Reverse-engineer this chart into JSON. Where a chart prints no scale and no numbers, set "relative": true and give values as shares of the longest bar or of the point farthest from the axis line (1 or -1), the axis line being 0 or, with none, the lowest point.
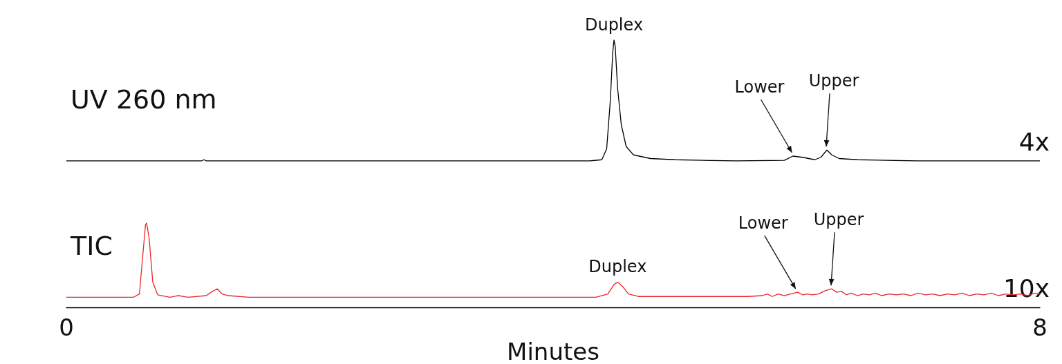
{
  "chart_data": [
    {
      "type": "line",
      "relative": true,
      "xlim": [
        0,
        8
      ],
      "tick_labels": false,
      "legend": false,
      "grid": false,
      "marker": "none",
      "series": [
        {
          "name": "UV 260 nm",
          "color": "#000000",
          "x": [
            0,
            0.5,
            1.11,
            1.13,
            1.15,
            4.3,
            4.4,
            4.44,
            4.47,
            4.49,
            4.5,
            4.51,
            4.53,
            4.56,
            4.6,
            4.66,
            4.8,
            5.0,
            5.5,
            5.9,
            5.97,
            6.05,
            6.15,
            6.2,
            6.25,
            6.29,
            6.35,
            6.5,
            7.0,
            8
          ],
          "values": [
            0,
            0,
            0,
            0.01,
            0,
            0,
            0.01,
            0.1,
            0.5,
            0.9,
            1,
            0.95,
            0.6,
            0.3,
            0.12,
            0.05,
            0.02,
            0.01,
            0,
            0.005,
            0.04,
            0.03,
            0.01,
            0.03,
            0.09,
            0.05,
            0.02,
            0.01,
            0,
            0
          ]
        }
      ],
      "annotations": [
        {
          "text": "Duplex",
          "x": 4.5,
          "y": 1
        },
        {
          "text": "Lower",
          "x": 5.98,
          "y": 0.04
        },
        {
          "text": "Upper",
          "x": 6.25,
          "y": 0.09
        },
        "4x"
      ]
    },
    {
      "type": "line",
      "relative": true,
      "xlim": [
        0,
        8
      ],
      "xticks": [
        0,
        8
      ],
      "xlabel": "Minutes",
      "tick_labels": "x",
      "legend": false,
      "grid": false,
      "marker": "none",
      "series": [
        {
          "name": "TIC",
          "color": "#e8262b",
          "x": [
            0,
            0.55,
            0.6,
            0.63,
            0.65,
            0.66,
            0.68,
            0.71,
            0.75,
            0.85,
            0.92,
            1.0,
            1.15,
            1.2,
            1.24,
            1.28,
            1.33,
            1.5,
            4.35,
            4.45,
            4.5,
            4.53,
            4.57,
            4.62,
            4.7,
            5.6,
            5.72,
            5.76,
            5.8,
            5.85,
            5.9,
            5.95,
            6.01,
            6.05,
            6.09,
            6.13,
            6.18,
            6.24,
            6.29,
            6.33,
            6.37,
            6.41,
            6.45,
            6.5,
            6.55,
            6.6,
            6.65,
            6.7,
            6.76,
            6.82,
            6.88,
            6.94,
            7.0,
            7.06,
            7.12,
            7.18,
            7.24,
            7.3,
            7.36,
            7.42,
            7.48,
            7.54,
            7.6,
            7.66,
            7.72,
            7.78,
            7.84,
            7.9,
            7.96,
            8.0
          ],
          "values": [
            0.12,
            0.12,
            0.16,
            0.65,
            0.98,
            1,
            0.82,
            0.3,
            0.15,
            0.12,
            0.14,
            0.12,
            0.14,
            0.19,
            0.22,
            0.16,
            0.14,
            0.12,
            0.12,
            0.16,
            0.27,
            0.3,
            0.25,
            0.16,
            0.13,
            0.13,
            0.14,
            0.16,
            0.13,
            0.16,
            0.14,
            0.16,
            0.18,
            0.15,
            0.16,
            0.15,
            0.16,
            0.2,
            0.22,
            0.18,
            0.19,
            0.15,
            0.17,
            0.14,
            0.16,
            0.15,
            0.17,
            0.14,
            0.16,
            0.15,
            0.16,
            0.14,
            0.17,
            0.15,
            0.16,
            0.14,
            0.16,
            0.15,
            0.17,
            0.14,
            0.16,
            0.15,
            0.17,
            0.14,
            0.16,
            0.15,
            0.16,
            0.14,
            0.17,
            0.16
          ]
        }
      ],
      "annotations": [
        {
          "text": "Duplex",
          "x": 4.53,
          "y": 0.3
        },
        {
          "text": "Lower",
          "x": 6.01,
          "y": 0.18
        },
        {
          "text": "Upper",
          "x": 6.29,
          "y": 0.22
        },
        "10x"
      ]
    }
  ]
}
